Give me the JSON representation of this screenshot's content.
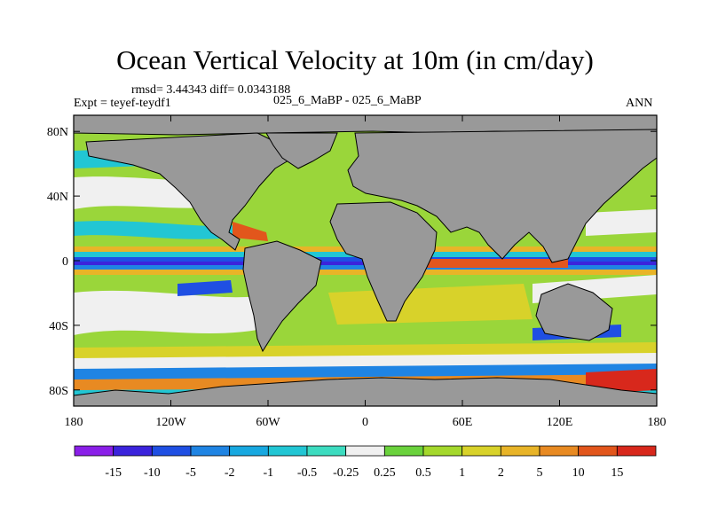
{
  "title": "Ocean Vertical Velocity at 10m (in cm/day)",
  "stats": "rmsd= 3.44343 diff= 0.0343188",
  "experiment": "Expt = teyef-teydf1",
  "comparison": "025_6_MaBP - 025_6_MaBP",
  "season": "ANN",
  "map": {
    "projection": "cylindrical-equidistant",
    "lon_range": [
      -180,
      180
    ],
    "lat_range": [
      -90,
      90
    ],
    "lat_ticks": [
      {
        "value": 80,
        "label": "80N"
      },
      {
        "value": 40,
        "label": "40N"
      },
      {
        "value": 0,
        "label": "0"
      },
      {
        "value": -40,
        "label": "40S"
      },
      {
        "value": -80,
        "label": "80S"
      }
    ],
    "lon_ticks": [
      {
        "value": -180,
        "label": "180"
      },
      {
        "value": -120,
        "label": "120W"
      },
      {
        "value": -60,
        "label": "60W"
      },
      {
        "value": 0,
        "label": "0"
      },
      {
        "value": 60,
        "label": "60E"
      },
      {
        "value": 120,
        "label": "120E"
      },
      {
        "value": 180,
        "label": "180"
      }
    ],
    "land_color": "#999999"
  },
  "colorbar": {
    "levels": [
      "-15",
      "-10",
      "-5",
      "-2",
      "-1",
      "-0.5",
      "-0.25",
      "0.25",
      "0.5",
      "1",
      "2",
      "5",
      "10",
      "15"
    ],
    "colors": [
      "#8a1fe8",
      "#3b23dc",
      "#1f4fe3",
      "#1f84e3",
      "#17a8e0",
      "#22c6d4",
      "#3cdcc0",
      "#f0f0f0",
      "#6ad23c",
      "#a4d82c",
      "#d8d22a",
      "#e8b428",
      "#e88a22",
      "#e2561c",
      "#d8281c"
    ]
  }
}
